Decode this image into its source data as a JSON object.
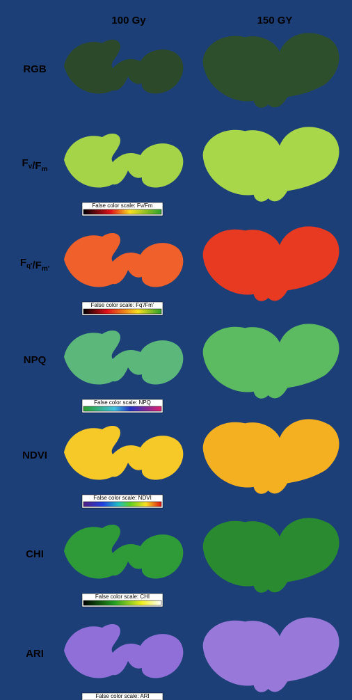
{
  "header": {
    "columns": [
      "100 Gy",
      "150 GY"
    ]
  },
  "rows": [
    {
      "label": [
        {
          "text": "RGB"
        }
      ]
    },
    {
      "label": [
        {
          "text": "F"
        },
        {
          "sub": "v"
        },
        {
          "text": "/F"
        },
        {
          "sub": "m"
        }
      ],
      "scale": "False color scale: Fv/Fm"
    },
    {
      "label": [
        {
          "text": "F"
        },
        {
          "sub": "q'"
        },
        {
          "text": "/F"
        },
        {
          "sub": "m'"
        }
      ],
      "scale": "False color scale: Fq'/Fm'"
    },
    {
      "label": [
        {
          "text": "NPQ"
        }
      ],
      "scale": "False color scale: NPQ"
    },
    {
      "label": [
        {
          "text": "NDVI"
        }
      ],
      "scale": "False color scale: NDVI"
    },
    {
      "label": [
        {
          "text": "CHI"
        }
      ],
      "scale": "False color scale: CHI"
    },
    {
      "label": [
        {
          "text": "ARI"
        }
      ],
      "scale": "False color scale: ARI"
    }
  ]
}
